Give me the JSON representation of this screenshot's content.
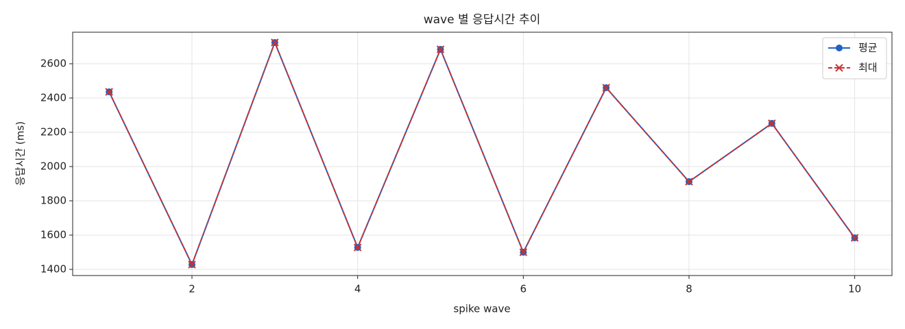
{
  "chart_data": {
    "type": "line",
    "title": "wave 별 응답시간 추이",
    "x_label": "spike wave",
    "y_label": "응답시간 (ms)",
    "x": [
      1,
      2,
      3,
      4,
      5,
      6,
      7,
      8,
      9,
      10
    ],
    "series": [
      {
        "name": "평균",
        "color": "#1f63c0",
        "marker": "circle",
        "dash": "solid",
        "values": [
          2436,
          1428,
          2724,
          1528,
          2684,
          1500,
          2460,
          1912,
          2252,
          1584
        ]
      },
      {
        "name": "최대",
        "color": "#c93232",
        "marker": "x",
        "dash": "dashed",
        "values": [
          2436,
          1428,
          2724,
          1528,
          2684,
          1500,
          2460,
          1912,
          2252,
          1584
        ]
      }
    ],
    "xlim": [
      0.56,
      10.45
    ],
    "ylim": [
      1364,
      2784
    ],
    "xticks": [
      2,
      4,
      6,
      8,
      10
    ],
    "yticks": [
      1400,
      1600,
      1800,
      2000,
      2200,
      2400,
      2600
    ],
    "grid": true,
    "legend": "upper right"
  }
}
